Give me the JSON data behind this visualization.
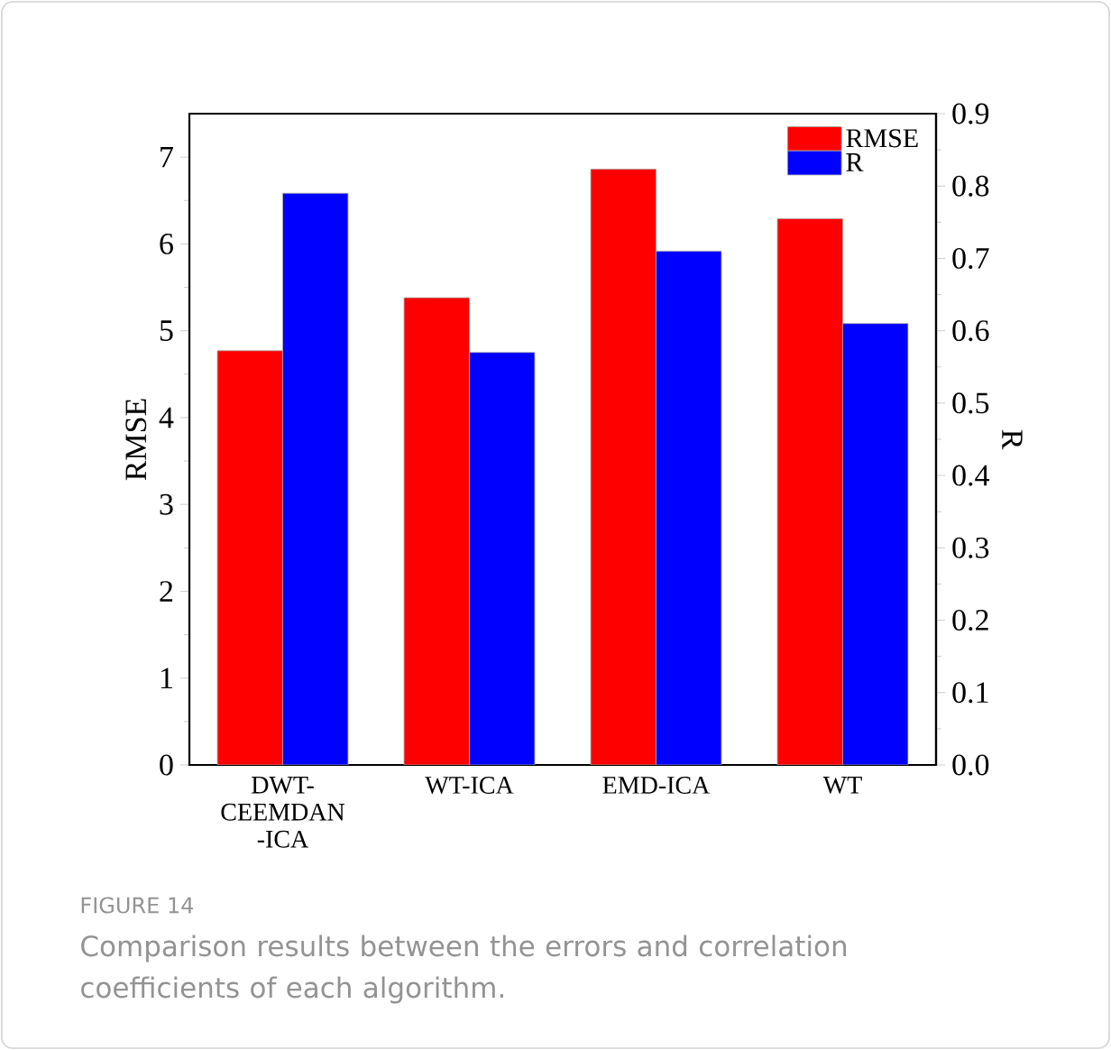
{
  "chart_data": {
    "type": "bar",
    "categories": [
      "DWT-CEEMDAN -ICA",
      "WT-ICA",
      "EMD-ICA",
      "WT"
    ],
    "series": [
      {
        "name": "RMSE",
        "color": "#ff0000",
        "values": [
          4.77,
          5.38,
          6.86,
          6.29
        ]
      },
      {
        "name": "R",
        "color": "#0000ff",
        "axis": "y2",
        "values": [
          0.79,
          0.57,
          0.71,
          0.61
        ]
      }
    ],
    "ylabel": "RMSE",
    "y2label": "R",
    "ylim": [
      0,
      7.5
    ],
    "yticks": [
      0,
      1,
      2,
      3,
      4,
      5,
      6,
      7
    ],
    "y2lim": [
      0,
      0.9
    ],
    "y2ticks": [
      {
        "value": 0,
        "label": "0.0"
      },
      0.1,
      0.2,
      0.3,
      0.4,
      0.5,
      0.6,
      0.7,
      0.8,
      0.9
    ],
    "legend": "top right",
    "grid": false,
    "annotations": [
      "FIGURE 14",
      "Comparison results between the errors and correlation coefficients of each algorithm."
    ]
  }
}
